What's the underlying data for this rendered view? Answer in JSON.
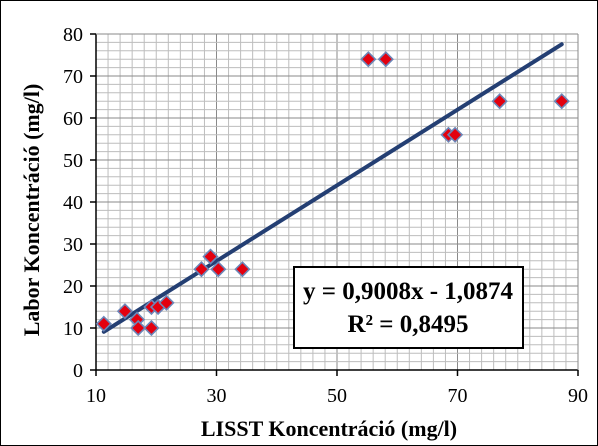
{
  "chart_data": {
    "type": "scatter",
    "title": "",
    "xlabel": "LISST Koncentráció (mg/l)",
    "ylabel": "Labor Koncentráció (mg/l)",
    "xlim": [
      10,
      90
    ],
    "ylim": [
      0,
      80
    ],
    "x_ticks": [
      10,
      30,
      50,
      70,
      90
    ],
    "y_ticks": [
      0,
      10,
      20,
      30,
      40,
      50,
      60,
      70,
      80
    ],
    "x_minor_step": 2,
    "y_minor_step": 2,
    "grid": true,
    "legend": "none",
    "series": [
      {
        "marker": "diamond",
        "color": "#e3000f",
        "edge_color": "#6c86b8",
        "points": [
          {
            "x": 11.3,
            "y": 11
          },
          {
            "x": 14.8,
            "y": 14
          },
          {
            "x": 16.8,
            "y": 12
          },
          {
            "x": 17,
            "y": 10
          },
          {
            "x": 19.2,
            "y": 15
          },
          {
            "x": 19.2,
            "y": 10
          },
          {
            "x": 20.3,
            "y": 15
          },
          {
            "x": 21.7,
            "y": 16
          },
          {
            "x": 27.5,
            "y": 24
          },
          {
            "x": 29,
            "y": 27
          },
          {
            "x": 30.3,
            "y": 24
          },
          {
            "x": 34.3,
            "y": 24
          },
          {
            "x": 55.2,
            "y": 74
          },
          {
            "x": 58.1,
            "y": 74
          },
          {
            "x": 68.5,
            "y": 56
          },
          {
            "x": 69.6,
            "y": 56
          },
          {
            "x": 77,
            "y": 64
          },
          {
            "x": 87.3,
            "y": 64
          }
        ]
      }
    ],
    "trendline": {
      "color": "#243f73",
      "slope": 0.9008,
      "intercept": -1.0874,
      "x_range": [
        11.3,
        87.3
      ],
      "equation_label": "y = 0,9008x - 1,0874",
      "r2_label": "R² = 0,8495"
    }
  }
}
